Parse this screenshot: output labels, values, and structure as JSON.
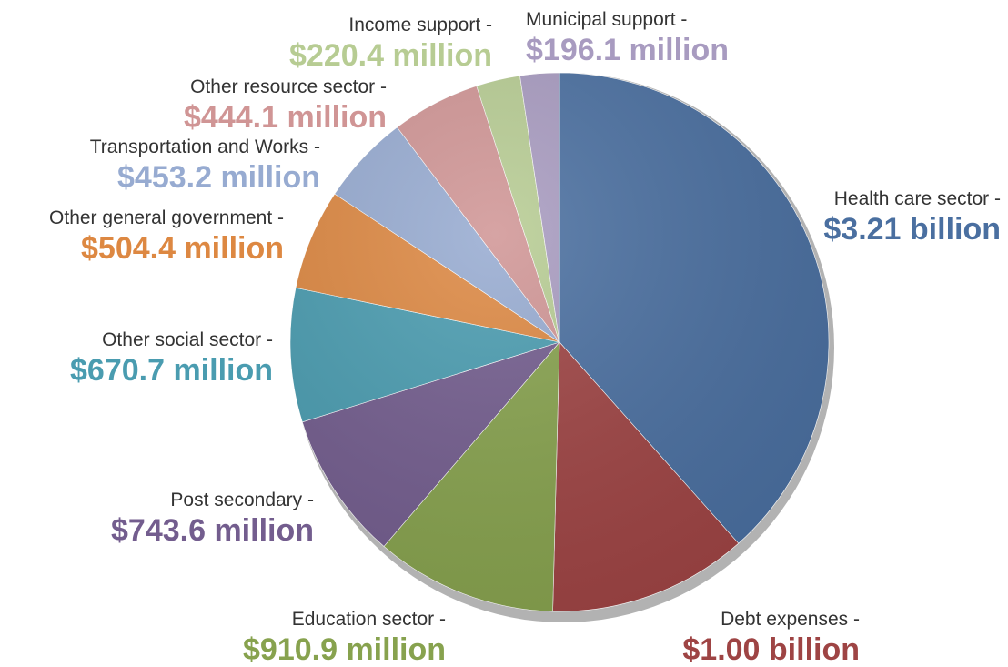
{
  "chart_data": {
    "type": "pie",
    "title": "",
    "start": "12 o'clock",
    "direction": "clockwise",
    "slices": [
      {
        "name": "Health care sector",
        "value_label": "$3.21 billion",
        "value": 3210,
        "color": "#4a6fa0",
        "label_name": "Health care sector -"
      },
      {
        "name": "Debt expenses",
        "value_label": "$1.00 billion",
        "value": 1000,
        "color": "#9e4444",
        "label_name": "Debt expenses -"
      },
      {
        "name": "Education sector",
        "value_label": "$910.9 million",
        "value": 910.9,
        "color": "#87a24e",
        "label_name": "Education sector -"
      },
      {
        "name": "Post secondary",
        "value_label": "$743.6 million",
        "value": 743.6,
        "color": "#735d8e",
        "label_name": "Post secondary -"
      },
      {
        "name": "Other social sector",
        "value_label": "$670.7 million",
        "value": 670.7,
        "color": "#4a9cb0",
        "label_name": "Other social sector -"
      },
      {
        "name": "Other general government",
        "value_label": "$504.4 million",
        "value": 504.4,
        "color": "#dd8842",
        "label_name": "Other general government -"
      },
      {
        "name": "Transportation and Works",
        "value_label": "$453.2 million",
        "value": 453.2,
        "color": "#97abd1",
        "label_name": "Transportation and Works -"
      },
      {
        "name": "Other resource sector",
        "value_label": "$444.1 million",
        "value": 444.1,
        "color": "#d09595",
        "label_name": "Other resource sector -"
      },
      {
        "name": "Income support",
        "value_label": "$220.4 million",
        "value": 220.4,
        "color": "#b7cc93",
        "label_name": "Income support -"
      },
      {
        "name": "Municipal support",
        "value_label": "$196.1 million",
        "value": 196.1,
        "color": "#a89bc0",
        "label_name": "Municipal support -"
      }
    ]
  }
}
